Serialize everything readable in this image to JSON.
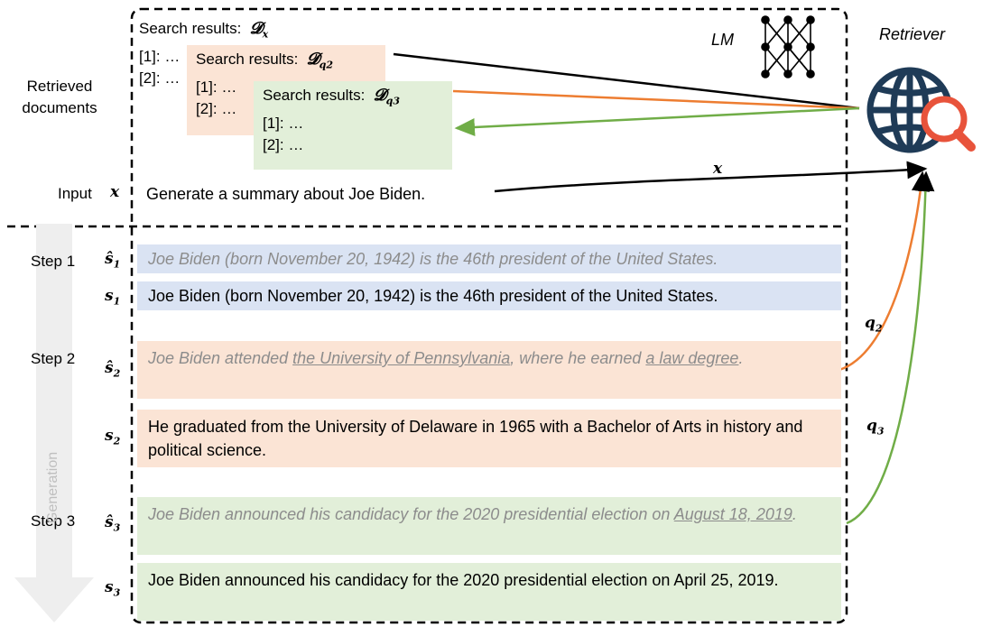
{
  "left_labels": {
    "retrieved": "Retrieved\ndocuments",
    "input": "Input",
    "step1": "Step 1",
    "step2": "Step 2",
    "step3": "Step 3",
    "generation": "Generation"
  },
  "symbols": {
    "x": "x",
    "s_hat_1": "ŝ",
    "s_1": "s",
    "s_hat_2": "ŝ",
    "s_2": "s",
    "s_hat_3": "ŝ",
    "s_3": "s",
    "sub1": "1",
    "sub2": "2",
    "sub3": "3"
  },
  "top_right": {
    "lm": "LM",
    "retriever": "Retriever"
  },
  "search_boxes": {
    "dx": {
      "title": "Search results:",
      "sym": "𝓓",
      "sub": "x",
      "item1": "[1]: …",
      "item2": "[2]: …"
    },
    "dq2": {
      "title": "Search results:",
      "sym": "𝓓",
      "sub": "q2",
      "item1": "[1]: …",
      "item2": "[2]: …"
    },
    "dq3": {
      "title": "Search results:",
      "sym": "𝓓",
      "sub": "q3",
      "item1": "[1]: …",
      "item2": "[2]: …"
    }
  },
  "input_text": "Generate a summary about Joe Biden.",
  "arrows": {
    "x": "x",
    "q2": "q",
    "q2_sub": "2",
    "q3": "q",
    "q3_sub": "3"
  },
  "steps": {
    "s_hat_1": "Joe Biden (born November 20, 1942) is the 46th president of the United States.",
    "s_1": "Joe Biden (born November 20, 1942) is the 46th president of the United States.",
    "s_hat_2_a": "Joe Biden attended ",
    "s_hat_2_u1": "the University of Pennsylvania",
    "s_hat_2_b": ", where he earned ",
    "s_hat_2_u2": "a law degree",
    "s_hat_2_c": ".",
    "s_2": "He graduated from the University of Delaware in 1965 with a Bachelor of Arts in history and political science.",
    "s_hat_3_a": "Joe Biden announced his candidacy for the 2020 presidential election on ",
    "s_hat_3_u": "August 18, 2019",
    "s_hat_3_c": ".",
    "s_3": "Joe Biden announced his candidacy for the 2020 presidential election on April 25, 2019."
  },
  "colors": {
    "blue": "#dae3f3",
    "orange": "#fbe4d5",
    "green": "#e2efd9",
    "orange_line": "#ed7d31",
    "green_line": "#70ad47",
    "globe": "#1f3b57",
    "magnifier": "#e8533b"
  }
}
